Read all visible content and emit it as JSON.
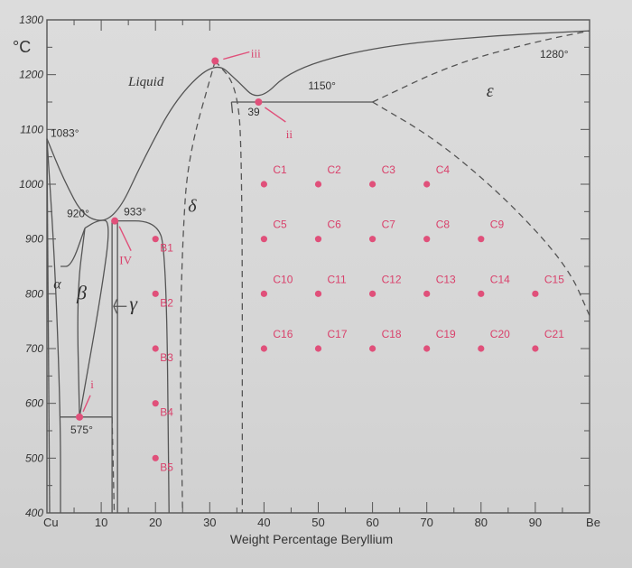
{
  "chart_data": {
    "type": "scatter",
    "title": "",
    "xlabel": "Weight Percentage Beryllium",
    "ylabel": "°C",
    "xlim": [
      0,
      100
    ],
    "ylim": [
      400,
      1300
    ],
    "x_ticks": [
      "Cu",
      "10",
      "20",
      "30",
      "40",
      "50",
      "60",
      "70",
      "80",
      "90",
      "Be"
    ],
    "y_ticks": [
      "400",
      "500",
      "600",
      "700",
      "800",
      "900",
      "1000",
      "1100",
      "1200",
      "1300"
    ],
    "phase_labels": [
      "Liquid",
      "α",
      "β",
      "γ",
      "δ",
      "ε"
    ],
    "temperature_labels": [
      {
        "text": "1083°",
        "x": 0,
        "y": 1083
      },
      {
        "text": "920°",
        "x": 7,
        "y": 920
      },
      {
        "text": "933°",
        "x": 12.5,
        "y": 933
      },
      {
        "text": "575°",
        "x": 6,
        "y": 575
      },
      {
        "text": "1150°",
        "x": 39,
        "y": 1150
      },
      {
        "text": "39",
        "x": 39,
        "y": 1150
      },
      {
        "text": "1280°",
        "x": 100,
        "y": 1280
      }
    ],
    "special_points": [
      {
        "label": "i",
        "x": 6,
        "y": 575
      },
      {
        "label": "ii",
        "x": 39,
        "y": 1150
      },
      {
        "label": "iii",
        "x": 31,
        "y": 1225
      },
      {
        "label": "IV",
        "x": 12.5,
        "y": 933
      }
    ],
    "series": [
      {
        "name": "",
        "points": [
          {
            "label": "B1",
            "x": 20,
            "y": 900
          },
          {
            "label": "B2",
            "x": 20,
            "y": 800
          },
          {
            "label": "B3",
            "x": 20,
            "y": 700
          },
          {
            "label": "B4",
            "x": 20,
            "y": 600
          },
          {
            "label": "B5",
            "x": 20,
            "y": 500
          },
          {
            "label": "C1",
            "x": 40,
            "y": 1000
          },
          {
            "label": "C2",
            "x": 50,
            "y": 1000
          },
          {
            "label": "C3",
            "x": 60,
            "y": 1000
          },
          {
            "label": "C4",
            "x": 70,
            "y": 1000
          },
          {
            "label": "C5",
            "x": 40,
            "y": 900
          },
          {
            "label": "C6",
            "x": 50,
            "y": 900
          },
          {
            "label": "C7",
            "x": 60,
            "y": 900
          },
          {
            "label": "C8",
            "x": 70,
            "y": 900
          },
          {
            "label": "C9",
            "x": 80,
            "y": 900
          },
          {
            "label": "C10",
            "x": 40,
            "y": 800
          },
          {
            "label": "C11",
            "x": 50,
            "y": 800
          },
          {
            "label": "C12",
            "x": 60,
            "y": 800
          },
          {
            "label": "C13",
            "x": 70,
            "y": 800
          },
          {
            "label": "C14",
            "x": 80,
            "y": 800
          },
          {
            "label": "C15",
            "x": 90,
            "y": 800
          },
          {
            "label": "C16",
            "x": 40,
            "y": 700
          },
          {
            "label": "C17",
            "x": 50,
            "y": 700
          },
          {
            "label": "C18",
            "x": 60,
            "y": 700
          },
          {
            "label": "C19",
            "x": 70,
            "y": 700
          },
          {
            "label": "C20",
            "x": 80,
            "y": 700
          },
          {
            "label": "C21",
            "x": 90,
            "y": 700
          }
        ]
      }
    ],
    "colors": {
      "points": "#e0507a",
      "lines": "#555555",
      "background": "#d6d6d6"
    }
  }
}
